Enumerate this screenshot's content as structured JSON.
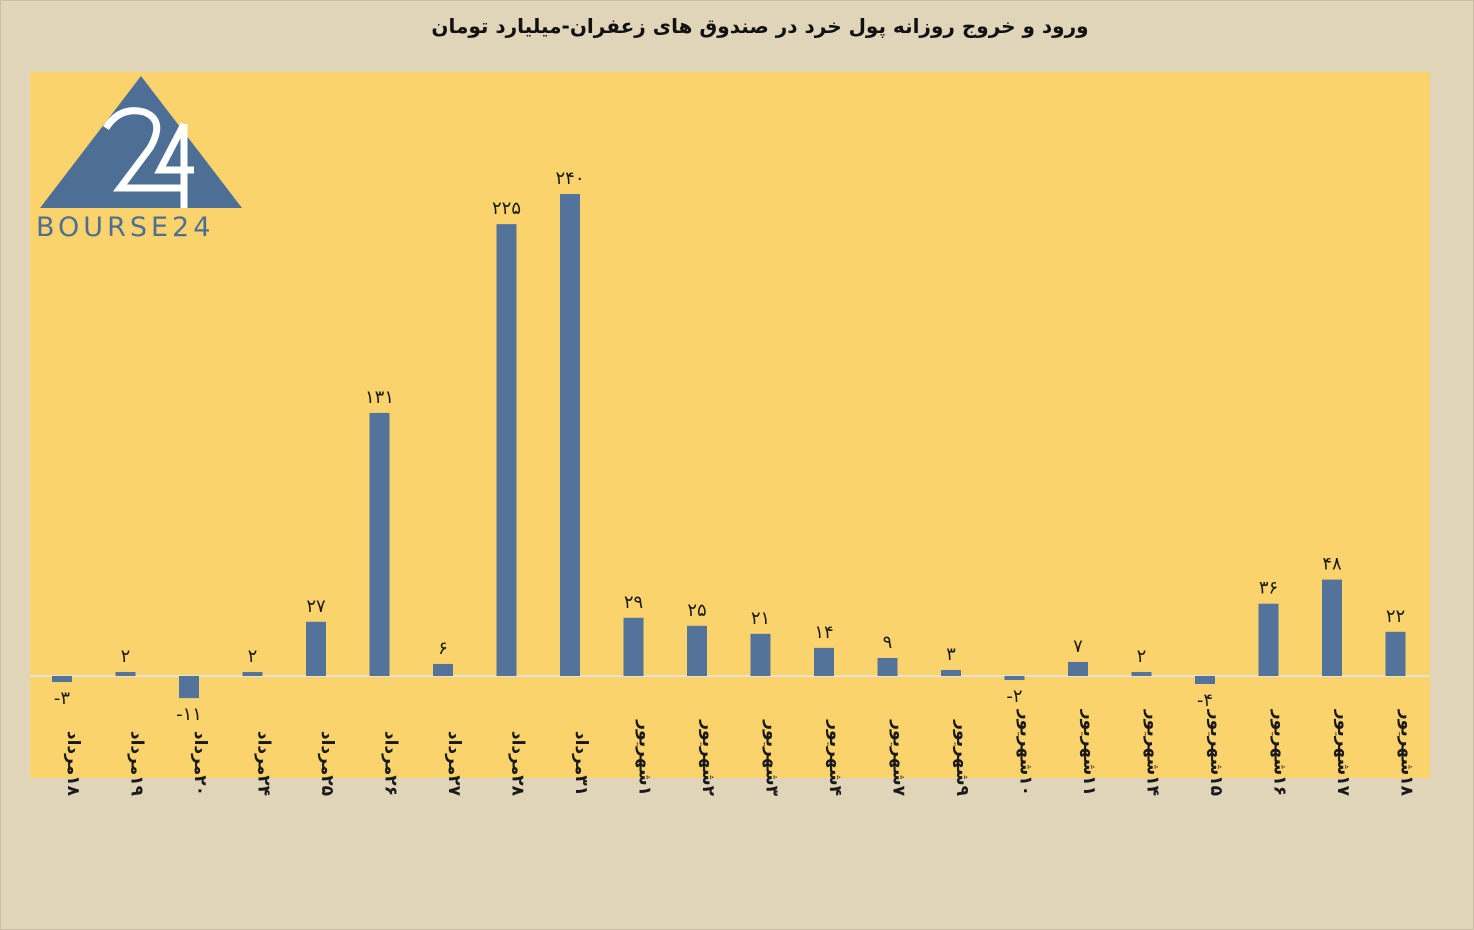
{
  "title": "ورود و خروج روزانه پول خرد در صندوق های زعفران-میلیارد تومان",
  "logo": {
    "text": "BOURSE24",
    "mark": "24",
    "icon": "bourse24-logo-triangle"
  },
  "colors": {
    "page_bg": "#e0d5b9",
    "plot_bg": "#fbd36d",
    "bar": "#53739b",
    "logo": "#4e6f95",
    "text": "#1a1a1a"
  },
  "chart_data": {
    "type": "bar",
    "title": "ورود و خروج روزانه پول خرد در صندوق های زعفران-میلیارد تومان",
    "xlabel": "",
    "ylabel": "",
    "ylim": [
      -50,
      260
    ],
    "grid": false,
    "legend": "none",
    "categories": [
      "۱۸مرداد",
      "۱۹مرداد",
      "۲۰مرداد",
      "۲۴مرداد",
      "۲۵مرداد",
      "۲۶مرداد",
      "۲۷مرداد",
      "۲۸مرداد",
      "۳۱مرداد",
      "۱شهریور",
      "۲شهریور",
      "۳شهریور",
      "۴شهریور",
      "۷شهریور",
      "۹شهریور",
      "۱۰شهریور",
      "۱۱شهریور",
      "۱۴شهریور",
      "۱۵شهریور",
      "۱۶شهریور",
      "۱۷شهریور",
      "۱۸شهریور"
    ],
    "values": [
      -3,
      2,
      -11,
      2,
      27,
      131,
      6,
      225,
      240,
      29,
      25,
      21,
      14,
      9,
      3,
      -2,
      7,
      2,
      -4,
      36,
      48,
      22
    ],
    "data_labels": [
      "-۳",
      "۲",
      "-۱۱",
      "۲",
      "۲۷",
      "۱۳۱",
      "۶",
      "۲۲۵",
      "۲۴۰",
      "۲۹",
      "۲۵",
      "۲۱",
      "۱۴",
      "۹",
      "۳",
      "-۲",
      "۷",
      "۲",
      "-۴",
      "۳۶",
      "۴۸",
      "۲۲"
    ]
  }
}
